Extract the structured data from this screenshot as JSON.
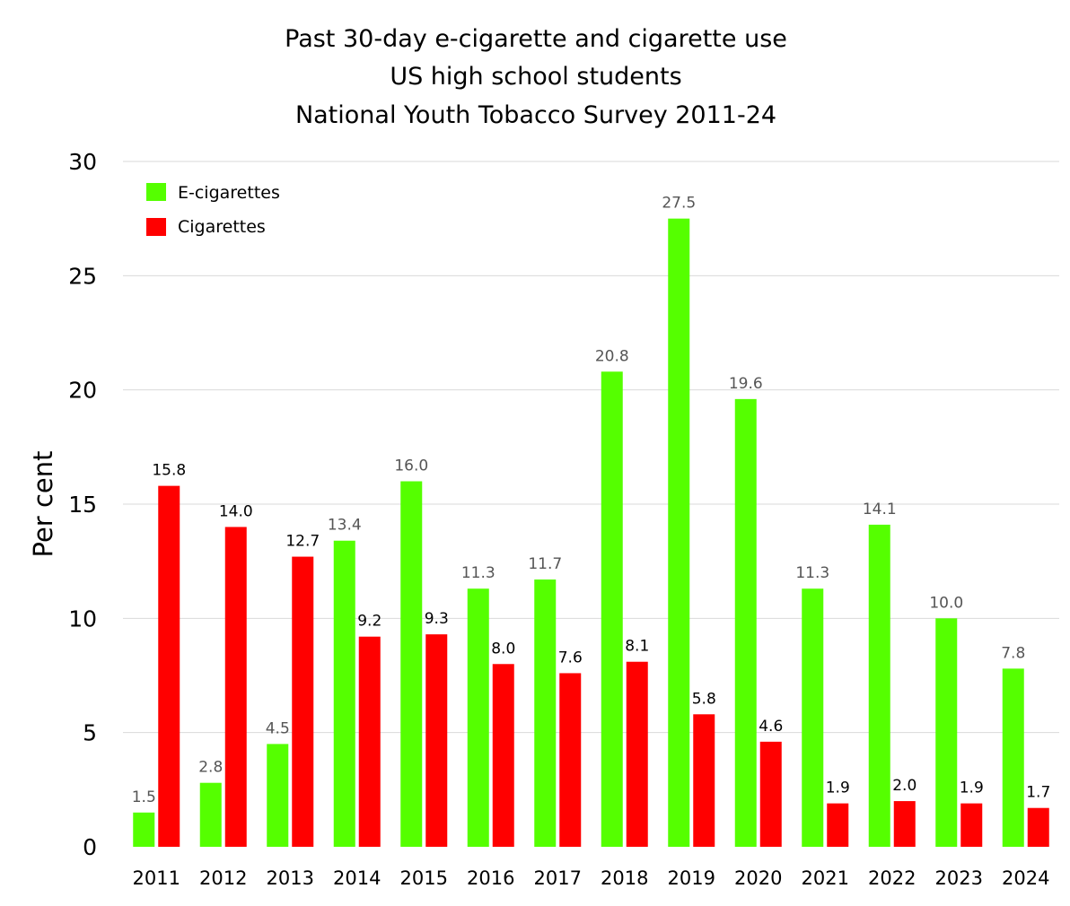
{
  "chart_data": {
    "type": "bar",
    "title": [
      "Past 30-day e-cigarette and cigarette use",
      "US high school students",
      "National Youth Tobacco Survey 2011-24"
    ],
    "xlabel": "",
    "ylabel": "Per cent",
    "ylim": [
      0,
      30
    ],
    "yticks": [
      0,
      5,
      10,
      15,
      20,
      25,
      30
    ],
    "grid": true,
    "legend_position": "top-left",
    "categories": [
      "2011",
      "2012",
      "2013",
      "2014",
      "2015",
      "2016",
      "2017",
      "2018",
      "2019",
      "2020",
      "2021",
      "2022",
      "2023",
      "2024"
    ],
    "series": [
      {
        "name": "E-cigarettes",
        "color": "#55ff00",
        "label_color": "#555555",
        "values": [
          1.5,
          2.8,
          4.5,
          13.4,
          16.0,
          11.3,
          11.7,
          20.8,
          27.5,
          19.6,
          11.3,
          14.1,
          10.0,
          7.8
        ],
        "labels": [
          "1.5",
          "2.8",
          "4.5",
          "13.4",
          "16.0",
          "11.3",
          "11.7",
          "20.8",
          "27.5",
          "19.6",
          "11.3",
          "14.1",
          "10.0",
          "7.8"
        ]
      },
      {
        "name": "Cigarettes",
        "color": "#ff0000",
        "label_color": "#000000",
        "values": [
          15.8,
          14.0,
          12.7,
          9.2,
          9.3,
          8.0,
          7.6,
          8.1,
          5.8,
          4.6,
          1.9,
          2.0,
          1.9,
          1.7
        ],
        "labels": [
          "15.8",
          "14.0",
          "12.7",
          "9.2",
          "9.3",
          "8.0",
          "7.6",
          "8.1",
          "5.8",
          "4.6",
          "1.9",
          "2.0",
          "1.9",
          "1.7"
        ]
      }
    ]
  }
}
